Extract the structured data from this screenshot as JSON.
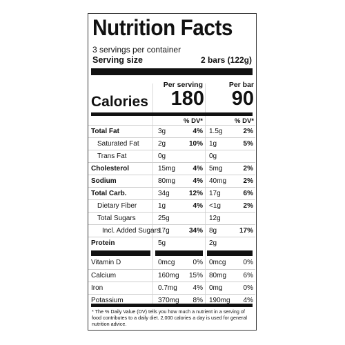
{
  "title": "Nutrition Facts",
  "servings": "3 servings per container",
  "serving_size_label": "Serving size",
  "serving_size_value": "2 bars (122g)",
  "per_serving_header": "Per serving",
  "per_bar_header": "Per bar",
  "calories_label": "Calories",
  "calories_per_serving": "180",
  "calories_per_bar": "90",
  "dv_header": "% DV*",
  "nutrients": [
    {
      "name": "Total Fat",
      "amt1": "3g",
      "dv1": "4%",
      "amt2": "1.5g",
      "dv2": "2%"
    },
    {
      "name": "Saturated Fat",
      "amt1": "2g",
      "dv1": "10%",
      "amt2": "1g",
      "dv2": "5%"
    },
    {
      "name": "Trans Fat",
      "amt1": "0g",
      "dv1": "",
      "amt2": "0g",
      "dv2": ""
    },
    {
      "name": "Cholesterol",
      "amt1": "15mg",
      "dv1": "4%",
      "amt2": "5mg",
      "dv2": "2%"
    },
    {
      "name": "Sodium",
      "amt1": "80mg",
      "dv1": "4%",
      "amt2": "40mg",
      "dv2": "2%"
    },
    {
      "name": "Total Carb.",
      "amt1": "34g",
      "dv1": "12%",
      "amt2": "17g",
      "dv2": "6%"
    },
    {
      "name": "Dietary Fiber",
      "amt1": "1g",
      "dv1": "4%",
      "amt2": "<1g",
      "dv2": "2%"
    },
    {
      "name": "Total Sugars",
      "amt1": "25g",
      "dv1": "",
      "amt2": "12g",
      "dv2": ""
    },
    {
      "name": "Incl. Added Sugars",
      "amt1": "17g",
      "dv1": "34%",
      "amt2": "8g",
      "dv2": "17%"
    },
    {
      "name": "Protein",
      "amt1": "5g",
      "dv1": "",
      "amt2": "2g",
      "dv2": ""
    }
  ],
  "vitamins": [
    {
      "name": "Vitamin D",
      "amt1": "0mcg",
      "dv1": "0%",
      "amt2": "0mcg",
      "dv2": "0%"
    },
    {
      "name": "Calcium",
      "amt1": "160mg",
      "dv1": "15%",
      "amt2": "80mg",
      "dv2": "6%"
    },
    {
      "name": "Iron",
      "amt1": "0.7mg",
      "dv1": "4%",
      "amt2": "0mg",
      "dv2": "0%"
    },
    {
      "name": "Potassium",
      "amt1": "370mg",
      "dv1": "8%",
      "amt2": "190mg",
      "dv2": "4%"
    }
  ],
  "footnote": "* The % Daily Value (DV) tells you how much a nutrient in a serving of food contributes to a daily diet. 2,000 calories a day is used for general nutrition advice."
}
